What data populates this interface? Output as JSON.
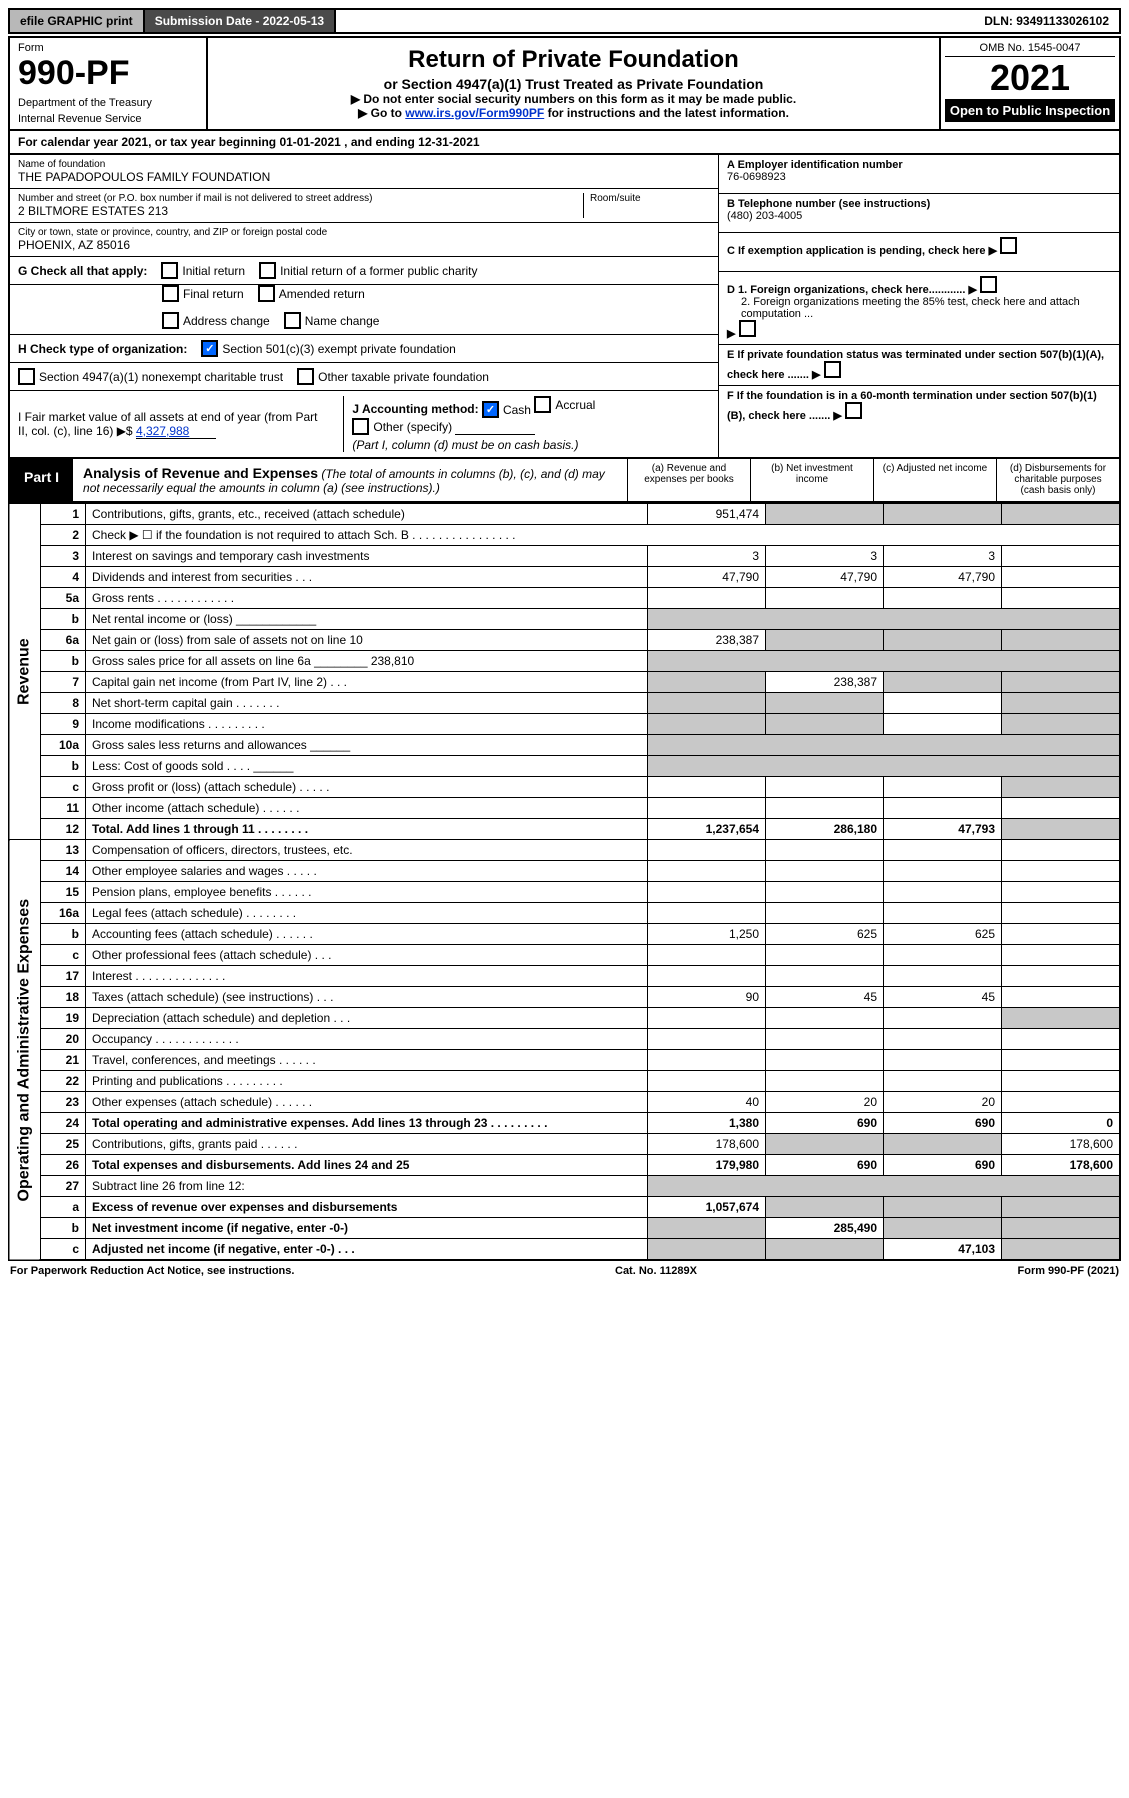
{
  "topbar": {
    "efile": "efile GRAPHIC print",
    "subdate_label": "Submission Date - 2022-05-13",
    "dln": "DLN: 93491133026102"
  },
  "header": {
    "form_label": "Form",
    "form_no": "990-PF",
    "dept": "Department of the Treasury",
    "irs": "Internal Revenue Service",
    "title": "Return of Private Foundation",
    "sub1": "or Section 4947(a)(1) Trust Treated as Private Foundation",
    "instr1": "▶ Do not enter social security numbers on this form as it may be made public.",
    "instr2_pre": "▶ Go to ",
    "instr2_link": "www.irs.gov/Form990PF",
    "instr2_post": " for instructions and the latest information.",
    "omb": "OMB No. 1545-0047",
    "year": "2021",
    "open": "Open to Public Inspection"
  },
  "calyear": "For calendar year 2021, or tax year beginning 01-01-2021        , and ending 12-31-2021",
  "entity": {
    "name_label": "Name of foundation",
    "name": "THE PAPADOPOULOS FAMILY FOUNDATION",
    "addr_label": "Number and street (or P.O. box number if mail is not delivered to street address)",
    "addr": "2 BILTMORE ESTATES 213",
    "suite_label": "Room/suite",
    "city_label": "City or town, state or province, country, and ZIP or foreign postal code",
    "city": "PHOENIX, AZ  85016",
    "ein_label": "A Employer identification number",
    "ein": "76-0698923",
    "phone_label": "B Telephone number (see instructions)",
    "phone": "(480) 203-4005",
    "c_label": "C If exemption application is pending, check here",
    "d1": "D 1. Foreign organizations, check here............",
    "d2": "2. Foreign organizations meeting the 85% test, check here and attach computation ...",
    "e_label": "E  If private foundation status was terminated under section 507(b)(1)(A), check here .......",
    "f_label": "F  If the foundation is in a 60-month termination under section 507(b)(1)(B), check here .......",
    "g_label": "G Check all that apply:",
    "g_initial": "Initial return",
    "g_initial_former": "Initial return of a former public charity",
    "g_final": "Final return",
    "g_amended": "Amended return",
    "g_address": "Address change",
    "g_name": "Name change",
    "h_label": "H Check type of organization:",
    "h_501c3": "Section 501(c)(3) exempt private foundation",
    "h_4947": "Section 4947(a)(1) nonexempt charitable trust",
    "h_other": "Other taxable private foundation",
    "i_label": "I Fair market value of all assets at end of year (from Part II, col. (c), line 16) ▶$",
    "i_value": "4,327,988",
    "j_label": "J Accounting method:",
    "j_cash": "Cash",
    "j_accrual": "Accrual",
    "j_other": "Other (specify)",
    "j_note": "(Part I, column (d) must be on cash basis.)"
  },
  "part1": {
    "label": "Part I",
    "title": "Analysis of Revenue and Expenses",
    "title_note": "(The total of amounts in columns (b), (c), and (d) may not necessarily equal the amounts in column (a) (see instructions).)",
    "col_a": "(a)   Revenue and expenses per books",
    "col_b": "(b)   Net investment income",
    "col_c": "(c)   Adjusted net income",
    "col_d": "(d)   Disbursements for charitable purposes (cash basis only)"
  },
  "side": {
    "revenue": "Revenue",
    "expenses": "Operating and Administrative Expenses"
  },
  "rows": [
    {
      "n": "1",
      "d": "",
      "a": "951,474",
      "b": "",
      "c": "",
      "shade_bcd": true
    },
    {
      "n": "2",
      "d": "Check ▶ ☐ if the foundation is not required to attach Sch. B   .  .  .  .  .  .  .  .  .  .  .  .  .  .  .  .",
      "noamt": true
    },
    {
      "n": "3",
      "d": "",
      "a": "3",
      "b": "3",
      "c": "3"
    },
    {
      "n": "4",
      "d": "",
      "a": "47,790",
      "b": "47,790",
      "c": "47,790"
    },
    {
      "n": "5a",
      "d": "",
      "a": "",
      "b": "",
      "c": ""
    },
    {
      "n": "b",
      "d": "Net rental income or (loss)  ____________",
      "noamt_shade": true
    },
    {
      "n": "6a",
      "d": "",
      "a": "238,387",
      "b": "",
      "c": "",
      "shade_bcd": true
    },
    {
      "n": "b",
      "d": "Gross sales price for all assets on line 6a ________  238,810",
      "noamt_shade": true
    },
    {
      "n": "7",
      "d": "",
      "a": "",
      "b": "238,387",
      "c": "",
      "shade_a": true,
      "shade_cd": true
    },
    {
      "n": "8",
      "d": "",
      "a": "",
      "b": "",
      "c": "",
      "shade_ab": true,
      "shade_d": true
    },
    {
      "n": "9",
      "d": "",
      "a": "",
      "b": "",
      "c": "",
      "shade_ab": true,
      "shade_d": true
    },
    {
      "n": "10a",
      "d": "Gross sales less returns and allowances  ______",
      "noamt_shade": true
    },
    {
      "n": "b",
      "d": "Less: Cost of goods sold     .  .  .  .  ______",
      "noamt_shade": true
    },
    {
      "n": "c",
      "d": "",
      "a": "",
      "b": "",
      "c": "",
      "shade_d": true
    },
    {
      "n": "11",
      "d": "",
      "a": "",
      "b": "",
      "c": ""
    },
    {
      "n": "12",
      "d": "",
      "a": "1,237,654",
      "b": "286,180",
      "c": "47,793",
      "bold": true,
      "shade_d": true
    },
    {
      "n": "13",
      "d": "",
      "a": "",
      "b": "",
      "c": ""
    },
    {
      "n": "14",
      "d": "",
      "a": "",
      "b": "",
      "c": ""
    },
    {
      "n": "15",
      "d": "",
      "a": "",
      "b": "",
      "c": ""
    },
    {
      "n": "16a",
      "d": "",
      "a": "",
      "b": "",
      "c": ""
    },
    {
      "n": "b",
      "d": "",
      "a": "1,250",
      "b": "625",
      "c": "625"
    },
    {
      "n": "c",
      "d": "",
      "a": "",
      "b": "",
      "c": ""
    },
    {
      "n": "17",
      "d": "",
      "a": "",
      "b": "",
      "c": ""
    },
    {
      "n": "18",
      "d": "",
      "a": "90",
      "b": "45",
      "c": "45"
    },
    {
      "n": "19",
      "d": "",
      "a": "",
      "b": "",
      "c": "",
      "shade_d": true
    },
    {
      "n": "20",
      "d": "",
      "a": "",
      "b": "",
      "c": ""
    },
    {
      "n": "21",
      "d": "",
      "a": "",
      "b": "",
      "c": ""
    },
    {
      "n": "22",
      "d": "",
      "a": "",
      "b": "",
      "c": ""
    },
    {
      "n": "23",
      "d": "",
      "a": "40",
      "b": "20",
      "c": "20"
    },
    {
      "n": "24",
      "d": "0",
      "a": "1,380",
      "b": "690",
      "c": "690",
      "bold": true
    },
    {
      "n": "25",
      "d": "178,600",
      "a": "178,600",
      "b": "",
      "c": "",
      "shade_bc": true
    },
    {
      "n": "26",
      "d": "178,600",
      "a": "179,980",
      "b": "690",
      "c": "690",
      "bold": true
    },
    {
      "n": "27",
      "d": "Subtract line 26 from line 12:",
      "noamt_shade": true
    },
    {
      "n": "a",
      "d": "",
      "a": "1,057,674",
      "b": "",
      "c": "",
      "bold": true,
      "shade_bcd": true
    },
    {
      "n": "b",
      "d": "",
      "a": "",
      "b": "285,490",
      "c": "",
      "bold": true,
      "shade_a": true,
      "shade_cd": true
    },
    {
      "n": "c",
      "d": "",
      "a": "",
      "b": "",
      "c": "47,103",
      "bold": true,
      "shade_ab": true,
      "shade_d": true
    }
  ],
  "footer": {
    "left": "For Paperwork Reduction Act Notice, see instructions.",
    "mid": "Cat. No. 11289X",
    "right": "Form 990-PF (2021)"
  }
}
